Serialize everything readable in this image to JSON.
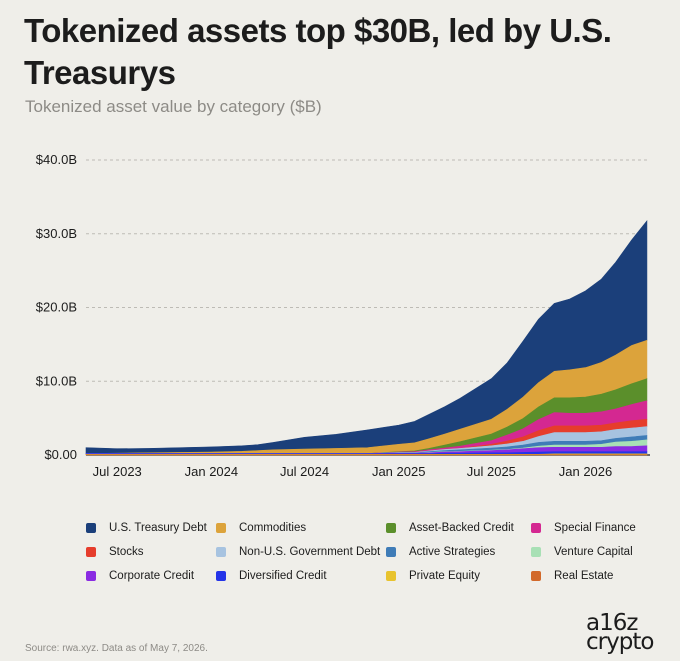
{
  "title": "Tokenized assets top $30B, led by U.S. Treasurys",
  "subtitle": "Tokenized asset value by category ($B)",
  "source": "Source: rwa.xyz. Data as of May 7, 2026.",
  "logo": {
    "line1": "a16z",
    "line2": "crypto"
  },
  "colors": {
    "background": "#efeee9",
    "grid": "#bdbbb5"
  },
  "chart_data": {
    "type": "area",
    "stacked": true,
    "grid": true,
    "legend_position": "bottom",
    "x": [
      "2023-05",
      "2023-07",
      "2023-09",
      "2023-11",
      "2024-01",
      "2024-03",
      "2024-04",
      "2024-05",
      "2024-07",
      "2024-09",
      "2024-11",
      "2025-01",
      "2025-02",
      "2025-03",
      "2025-04",
      "2025-05",
      "2025-07",
      "2025-08",
      "2025-09",
      "2025-10",
      "2025-11",
      "2025-12",
      "2026-01",
      "2026-02",
      "2026-03",
      "2026-04",
      "2026-05"
    ],
    "x_ticks": [
      {
        "value": "2023-07",
        "label": "Jul 2023"
      },
      {
        "value": "2024-01",
        "label": "Jan 2024"
      },
      {
        "value": "2024-07",
        "label": "Jul 2024"
      },
      {
        "value": "2025-01",
        "label": "Jan 2025"
      },
      {
        "value": "2025-07",
        "label": "Jul 2025"
      },
      {
        "value": "2026-01",
        "label": "Jan 2026"
      }
    ],
    "ylim": [
      0,
      40
    ],
    "y_ticks": [
      {
        "value": 0,
        "label": "$0.00"
      },
      {
        "value": 10,
        "label": "$10.0B"
      },
      {
        "value": 20,
        "label": "$20.0B"
      },
      {
        "value": 30,
        "label": "$30.0B"
      },
      {
        "value": 40,
        "label": "$40.0B"
      }
    ],
    "series": [
      {
        "name": "Real Estate",
        "color": "#d2692a",
        "values": [
          0.05,
          0.05,
          0.05,
          0.05,
          0.05,
          0.05,
          0.05,
          0.05,
          0.05,
          0.05,
          0.05,
          0.05,
          0.05,
          0.05,
          0.05,
          0.05,
          0.05,
          0.05,
          0.05,
          0.05,
          0.05,
          0.05,
          0.05,
          0.05,
          0.05,
          0.05,
          0.05
        ]
      },
      {
        "name": "Private Equity",
        "color": "#e8c32e",
        "values": [
          0.05,
          0.05,
          0.05,
          0.05,
          0.05,
          0.05,
          0.05,
          0.05,
          0.05,
          0.05,
          0.05,
          0.05,
          0.05,
          0.05,
          0.05,
          0.05,
          0.05,
          0.05,
          0.05,
          0.05,
          0.1,
          0.1,
          0.1,
          0.1,
          0.1,
          0.1,
          0.1
        ]
      },
      {
        "name": "Diversified Credit",
        "color": "#2434e8",
        "values": [
          0.1,
          0.1,
          0.1,
          0.1,
          0.1,
          0.1,
          0.1,
          0.1,
          0.1,
          0.1,
          0.1,
          0.1,
          0.1,
          0.1,
          0.15,
          0.15,
          0.2,
          0.2,
          0.25,
          0.3,
          0.3,
          0.3,
          0.3,
          0.3,
          0.3,
          0.3,
          0.3
        ]
      },
      {
        "name": "Corporate Credit",
        "color": "#8a2be2",
        "values": [
          0.0,
          0.0,
          0.0,
          0.0,
          0.0,
          0.0,
          0.0,
          0.0,
          0.0,
          0.0,
          0.0,
          0.05,
          0.05,
          0.1,
          0.15,
          0.2,
          0.3,
          0.4,
          0.5,
          0.6,
          0.6,
          0.6,
          0.6,
          0.6,
          0.7,
          0.7,
          0.8
        ]
      },
      {
        "name": "Venture Capital",
        "color": "#a8e0b5",
        "values": [
          0.0,
          0.0,
          0.0,
          0.0,
          0.0,
          0.0,
          0.0,
          0.0,
          0.0,
          0.0,
          0.0,
          0.0,
          0.0,
          0.05,
          0.05,
          0.05,
          0.05,
          0.05,
          0.1,
          0.2,
          0.3,
          0.3,
          0.3,
          0.4,
          0.6,
          0.7,
          0.8
        ]
      },
      {
        "name": "Active Strategies",
        "color": "#3f7cb7",
        "values": [
          0.0,
          0.0,
          0.0,
          0.0,
          0.0,
          0.0,
          0.0,
          0.0,
          0.0,
          0.0,
          0.0,
          0.05,
          0.05,
          0.1,
          0.15,
          0.2,
          0.3,
          0.35,
          0.4,
          0.5,
          0.5,
          0.5,
          0.5,
          0.5,
          0.5,
          0.6,
          0.6
        ]
      },
      {
        "name": "Non-U.S. Government Debt",
        "color": "#a7c3e0",
        "values": [
          0.0,
          0.0,
          0.0,
          0.0,
          0.0,
          0.0,
          0.0,
          0.0,
          0.0,
          0.0,
          0.0,
          0.05,
          0.05,
          0.1,
          0.15,
          0.2,
          0.3,
          0.4,
          0.5,
          0.8,
          1.2,
          1.2,
          1.2,
          1.2,
          1.2,
          1.2,
          1.2
        ]
      },
      {
        "name": "Stocks",
        "color": "#e63d2c",
        "values": [
          0.0,
          0.0,
          0.0,
          0.0,
          0.0,
          0.0,
          0.0,
          0.0,
          0.0,
          0.0,
          0.0,
          0.0,
          0.0,
          0.0,
          0.0,
          0.0,
          0.2,
          0.4,
          0.6,
          0.8,
          0.9,
          0.9,
          0.9,
          0.9,
          0.9,
          1.0,
          1.0
        ]
      },
      {
        "name": "Special Finance",
        "color": "#d42891",
        "values": [
          0.0,
          0.0,
          0.0,
          0.0,
          0.0,
          0.0,
          0.0,
          0.0,
          0.0,
          0.0,
          0.0,
          0.05,
          0.1,
          0.15,
          0.2,
          0.3,
          0.5,
          0.8,
          1.1,
          1.5,
          1.8,
          1.7,
          1.7,
          1.8,
          1.9,
          2.2,
          2.5
        ]
      },
      {
        "name": "Asset-Backed Credit",
        "color": "#5b8f2b",
        "values": [
          0.0,
          0.0,
          0.0,
          0.0,
          0.0,
          0.0,
          0.0,
          0.0,
          0.0,
          0.0,
          0.0,
          0.05,
          0.1,
          0.2,
          0.4,
          0.6,
          0.9,
          1.1,
          1.4,
          1.7,
          2.0,
          2.1,
          2.2,
          2.4,
          2.6,
          2.8,
          3.0
        ]
      },
      {
        "name": "Commodities",
        "color": "#dca33b",
        "values": [
          0.0,
          0.05,
          0.1,
          0.15,
          0.2,
          0.3,
          0.4,
          0.5,
          0.6,
          0.7,
          0.8,
          1.0,
          1.1,
          1.3,
          1.5,
          1.7,
          2.0,
          2.4,
          2.9,
          3.3,
          3.6,
          3.8,
          4.0,
          4.3,
          4.7,
          5.2,
          5.2
        ]
      },
      {
        "name": "U.S. Treasury Debt",
        "color": "#1b3f7a",
        "values": [
          0.8,
          0.6,
          0.6,
          0.65,
          0.7,
          0.75,
          0.8,
          1.0,
          1.6,
          1.9,
          2.4,
          2.6,
          2.9,
          3.3,
          3.7,
          4.2,
          5.5,
          6.3,
          7.6,
          8.6,
          9.2,
          9.6,
          10.4,
          11.3,
          12.6,
          14.3,
          16.2
        ]
      }
    ],
    "legend_order": [
      "U.S. Treasury Debt",
      "Commodities",
      "Asset-Backed Credit",
      "Special Finance",
      "Stocks",
      "Non-U.S. Government Debt",
      "Active Strategies",
      "Venture Capital",
      "Corporate Credit",
      "Diversified Credit",
      "Private Equity",
      "Real Estate"
    ]
  }
}
